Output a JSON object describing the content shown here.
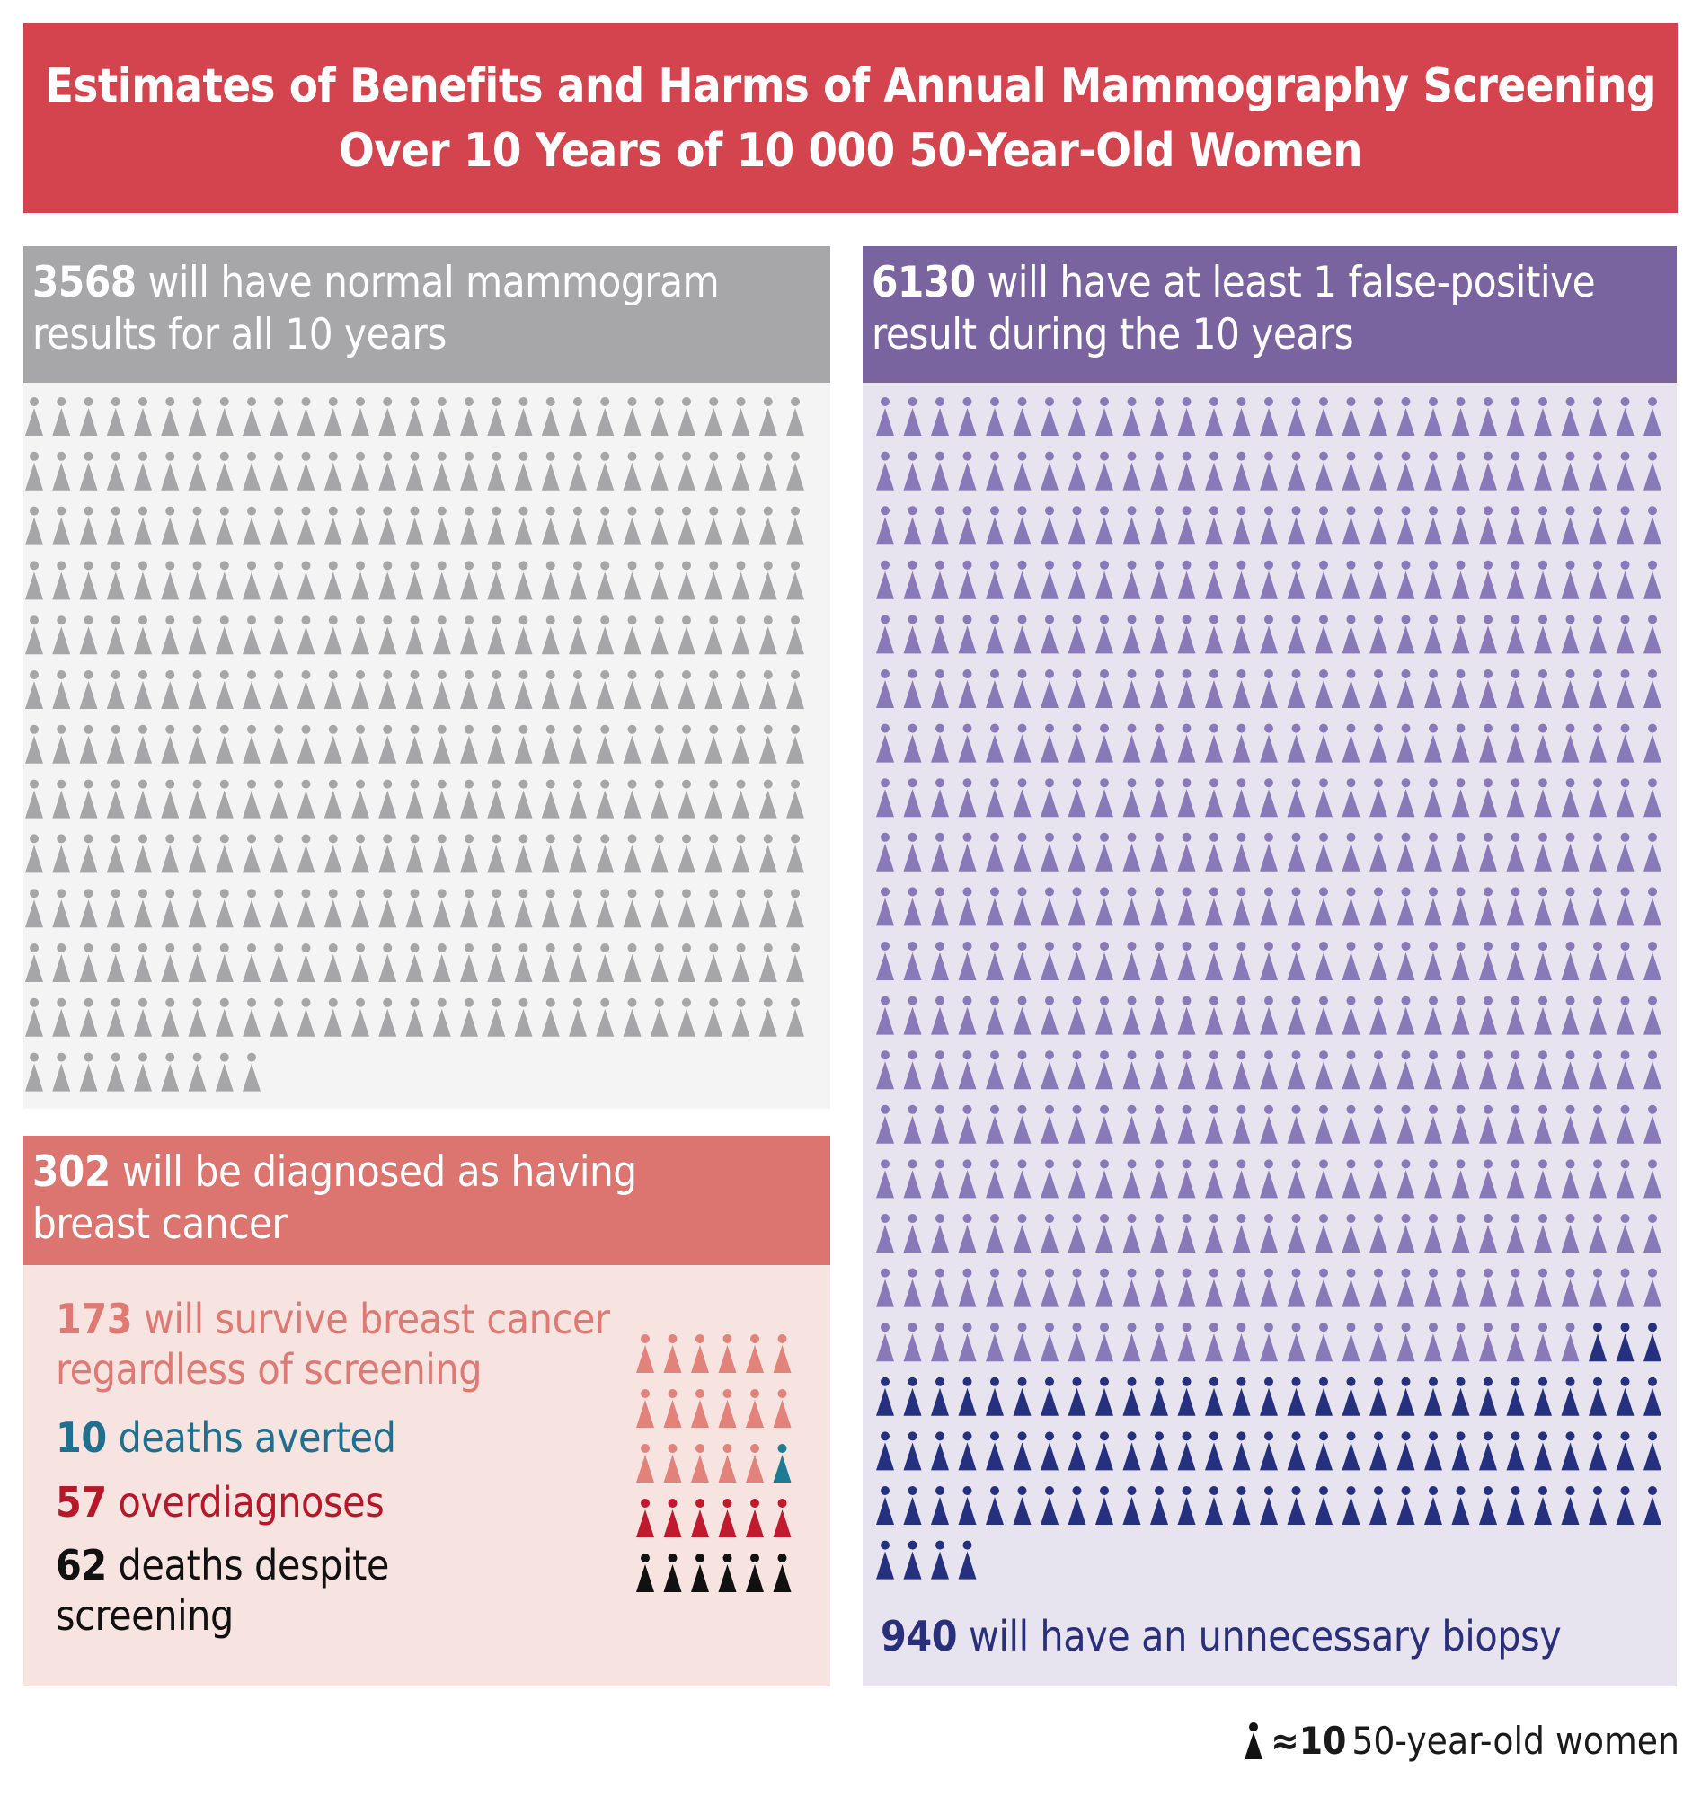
{
  "title": {
    "line1": "Estimates of Benefits and Harms of Annual Mammography Screening",
    "line2": "Over 10 Years of 10 000 50-Year-Old Women"
  },
  "normal": {
    "count": "3568",
    "text_line1": "will have normal mammogram",
    "text_line2": "results for all 10 years",
    "icons": 357,
    "color": "#a6a6a8"
  },
  "false_positive": {
    "count": "6130",
    "text_line1": "will have at least 1 false-positive",
    "text_line2": "result during the 10 years",
    "icons_total": 613,
    "icons_light": 519,
    "icons_dark": 94,
    "color_light": "#8a79b8",
    "color_dark": "#25307f"
  },
  "biopsy": {
    "count": "940",
    "text": "will have an unnecessary biopsy"
  },
  "cancer": {
    "count": "302",
    "text_line1": "will be diagnosed as having",
    "text_line2": "breast cancer",
    "outcomes": [
      {
        "count": "173",
        "line1": "will survive breast cancer",
        "line2": "regardless of screening",
        "icons": 17,
        "color": "#e2837b"
      },
      {
        "count": "10",
        "line1": "deaths averted",
        "line2": "",
        "icons": 1,
        "color": "#1f7b92"
      },
      {
        "count": "57",
        "line1": "overdiagnoses",
        "line2": "",
        "icons": 6,
        "color": "#c1192d"
      },
      {
        "count": "62",
        "line1": "deaths despite",
        "line2": "screening",
        "icons": 6,
        "color": "#111111"
      }
    ]
  },
  "legend": {
    "approx": "≈10",
    "text": "50-year-old women"
  }
}
